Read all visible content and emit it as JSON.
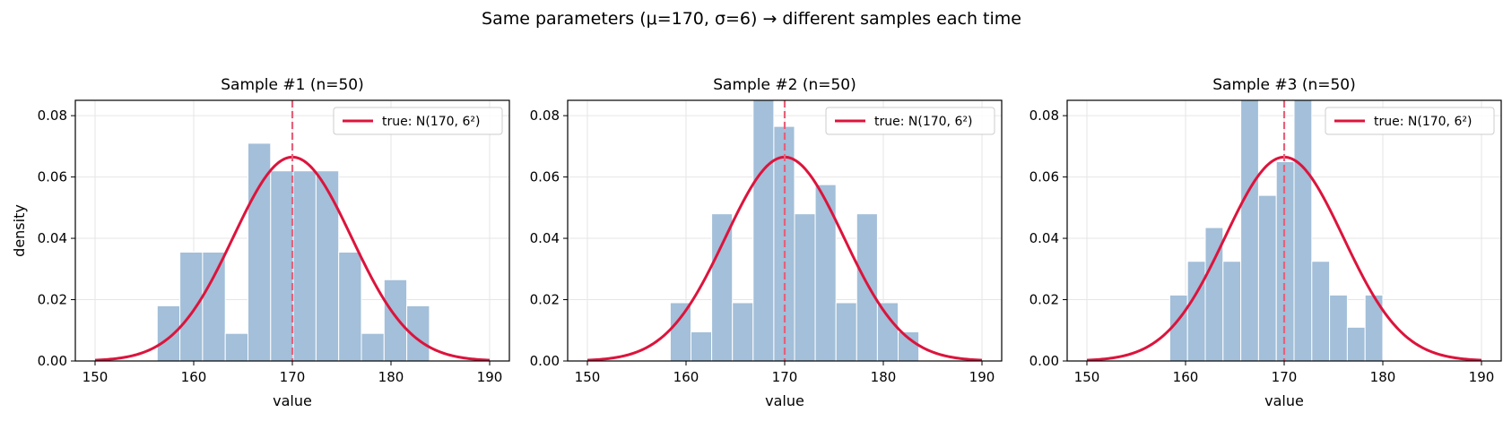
{
  "figure": {
    "title": "Same parameters (μ=170, σ=6) → different samples each time"
  },
  "colors": {
    "bar_fill": "#a3bfd9",
    "bar_edge": "#ffffff",
    "curve": "#dc143c",
    "mean_line": "#e8607a",
    "grid": "#e6e6e6"
  },
  "chart_data": [
    {
      "type": "bar",
      "title": "Sample #1 (n=50)",
      "xlabel": "value",
      "ylabel": "density",
      "xlim": [
        148,
        192
      ],
      "ylim": [
        0,
        0.085
      ],
      "xticks": [
        150,
        160,
        170,
        180,
        190
      ],
      "yticks": [
        0.0,
        0.02,
        0.04,
        0.06,
        0.08
      ],
      "ytick_labels": [
        "0.00",
        "0.02",
        "0.04",
        "0.06",
        "0.08"
      ],
      "grid": true,
      "legend": {
        "placement": "top-right",
        "label": "true: N(170, 6²)"
      },
      "mean_line_x": 170,
      "curve": {
        "mu": 170,
        "sigma": 6,
        "x_range": [
          150,
          190
        ]
      },
      "bins": [
        {
          "x0": 156.3,
          "x1": 158.6,
          "value": 0.018
        },
        {
          "x0": 158.6,
          "x1": 160.9,
          "value": 0.0355
        },
        {
          "x0": 160.9,
          "x1": 163.2,
          "value": 0.0355
        },
        {
          "x0": 163.2,
          "x1": 165.5,
          "value": 0.009
        },
        {
          "x0": 165.5,
          "x1": 167.8,
          "value": 0.071
        },
        {
          "x0": 167.8,
          "x1": 170.1,
          "value": 0.062
        },
        {
          "x0": 170.1,
          "x1": 172.4,
          "value": 0.062
        },
        {
          "x0": 172.4,
          "x1": 174.7,
          "value": 0.062
        },
        {
          "x0": 174.7,
          "x1": 177.0,
          "value": 0.0355
        },
        {
          "x0": 177.0,
          "x1": 179.3,
          "value": 0.009
        },
        {
          "x0": 179.3,
          "x1": 181.6,
          "value": 0.0265
        },
        {
          "x0": 181.6,
          "x1": 183.9,
          "value": 0.018
        }
      ]
    },
    {
      "type": "bar",
      "title": "Sample #2 (n=50)",
      "xlabel": "value",
      "ylabel": "",
      "xlim": [
        148,
        192
      ],
      "ylim": [
        0,
        0.085
      ],
      "xticks": [
        150,
        160,
        170,
        180,
        190
      ],
      "yticks": [
        0.0,
        0.02,
        0.04,
        0.06,
        0.08
      ],
      "ytick_labels": [
        "0.00",
        "0.02",
        "0.04",
        "0.06",
        "0.08"
      ],
      "grid": true,
      "legend": {
        "placement": "top-right",
        "label": "true: N(170, 6²)"
      },
      "mean_line_x": 170,
      "curve": {
        "mu": 170,
        "sigma": 6,
        "x_range": [
          150,
          190
        ]
      },
      "bins": [
        {
          "x0": 158.4,
          "x1": 160.5,
          "value": 0.019
        },
        {
          "x0": 160.5,
          "x1": 162.6,
          "value": 0.0095
        },
        {
          "x0": 162.6,
          "x1": 164.7,
          "value": 0.048
        },
        {
          "x0": 164.7,
          "x1": 166.8,
          "value": 0.019
        },
        {
          "x0": 166.8,
          "x1": 168.9,
          "value": 0.0875
        },
        {
          "x0": 168.9,
          "x1": 171.0,
          "value": 0.0765
        },
        {
          "x0": 171.0,
          "x1": 173.1,
          "value": 0.048
        },
        {
          "x0": 173.1,
          "x1": 175.2,
          "value": 0.0575
        },
        {
          "x0": 175.2,
          "x1": 177.3,
          "value": 0.019
        },
        {
          "x0": 177.3,
          "x1": 179.4,
          "value": 0.048
        },
        {
          "x0": 179.4,
          "x1": 181.5,
          "value": 0.019
        },
        {
          "x0": 181.5,
          "x1": 183.6,
          "value": 0.0095
        }
      ]
    },
    {
      "type": "bar",
      "title": "Sample #3 (n=50)",
      "xlabel": "value",
      "ylabel": "",
      "xlim": [
        148,
        192
      ],
      "ylim": [
        0,
        0.085
      ],
      "xticks": [
        150,
        160,
        170,
        180,
        190
      ],
      "yticks": [
        0.0,
        0.02,
        0.04,
        0.06,
        0.08
      ],
      "ytick_labels": [
        "0.00",
        "0.02",
        "0.04",
        "0.06",
        "0.08"
      ],
      "grid": true,
      "legend": {
        "placement": "top-right",
        "label": "true: N(170, 6²)"
      },
      "mean_line_x": 170,
      "curve": {
        "mu": 170,
        "sigma": 6,
        "x_range": [
          150,
          190
        ]
      },
      "bins": [
        {
          "x0": 158.4,
          "x1": 160.2,
          "value": 0.0215
        },
        {
          "x0": 160.2,
          "x1": 162.0,
          "value": 0.0325
        },
        {
          "x0": 162.0,
          "x1": 163.8,
          "value": 0.0435
        },
        {
          "x0": 163.8,
          "x1": 165.6,
          "value": 0.0325
        },
        {
          "x0": 165.6,
          "x1": 167.4,
          "value": 0.0865
        },
        {
          "x0": 167.4,
          "x1": 169.2,
          "value": 0.054
        },
        {
          "x0": 169.2,
          "x1": 171.0,
          "value": 0.065
        },
        {
          "x0": 171.0,
          "x1": 172.8,
          "value": 0.0865
        },
        {
          "x0": 172.8,
          "x1": 174.6,
          "value": 0.0325
        },
        {
          "x0": 174.6,
          "x1": 176.4,
          "value": 0.0215
        },
        {
          "x0": 176.4,
          "x1": 178.2,
          "value": 0.011
        },
        {
          "x0": 178.2,
          "x1": 180.0,
          "value": 0.0215
        }
      ]
    }
  ]
}
